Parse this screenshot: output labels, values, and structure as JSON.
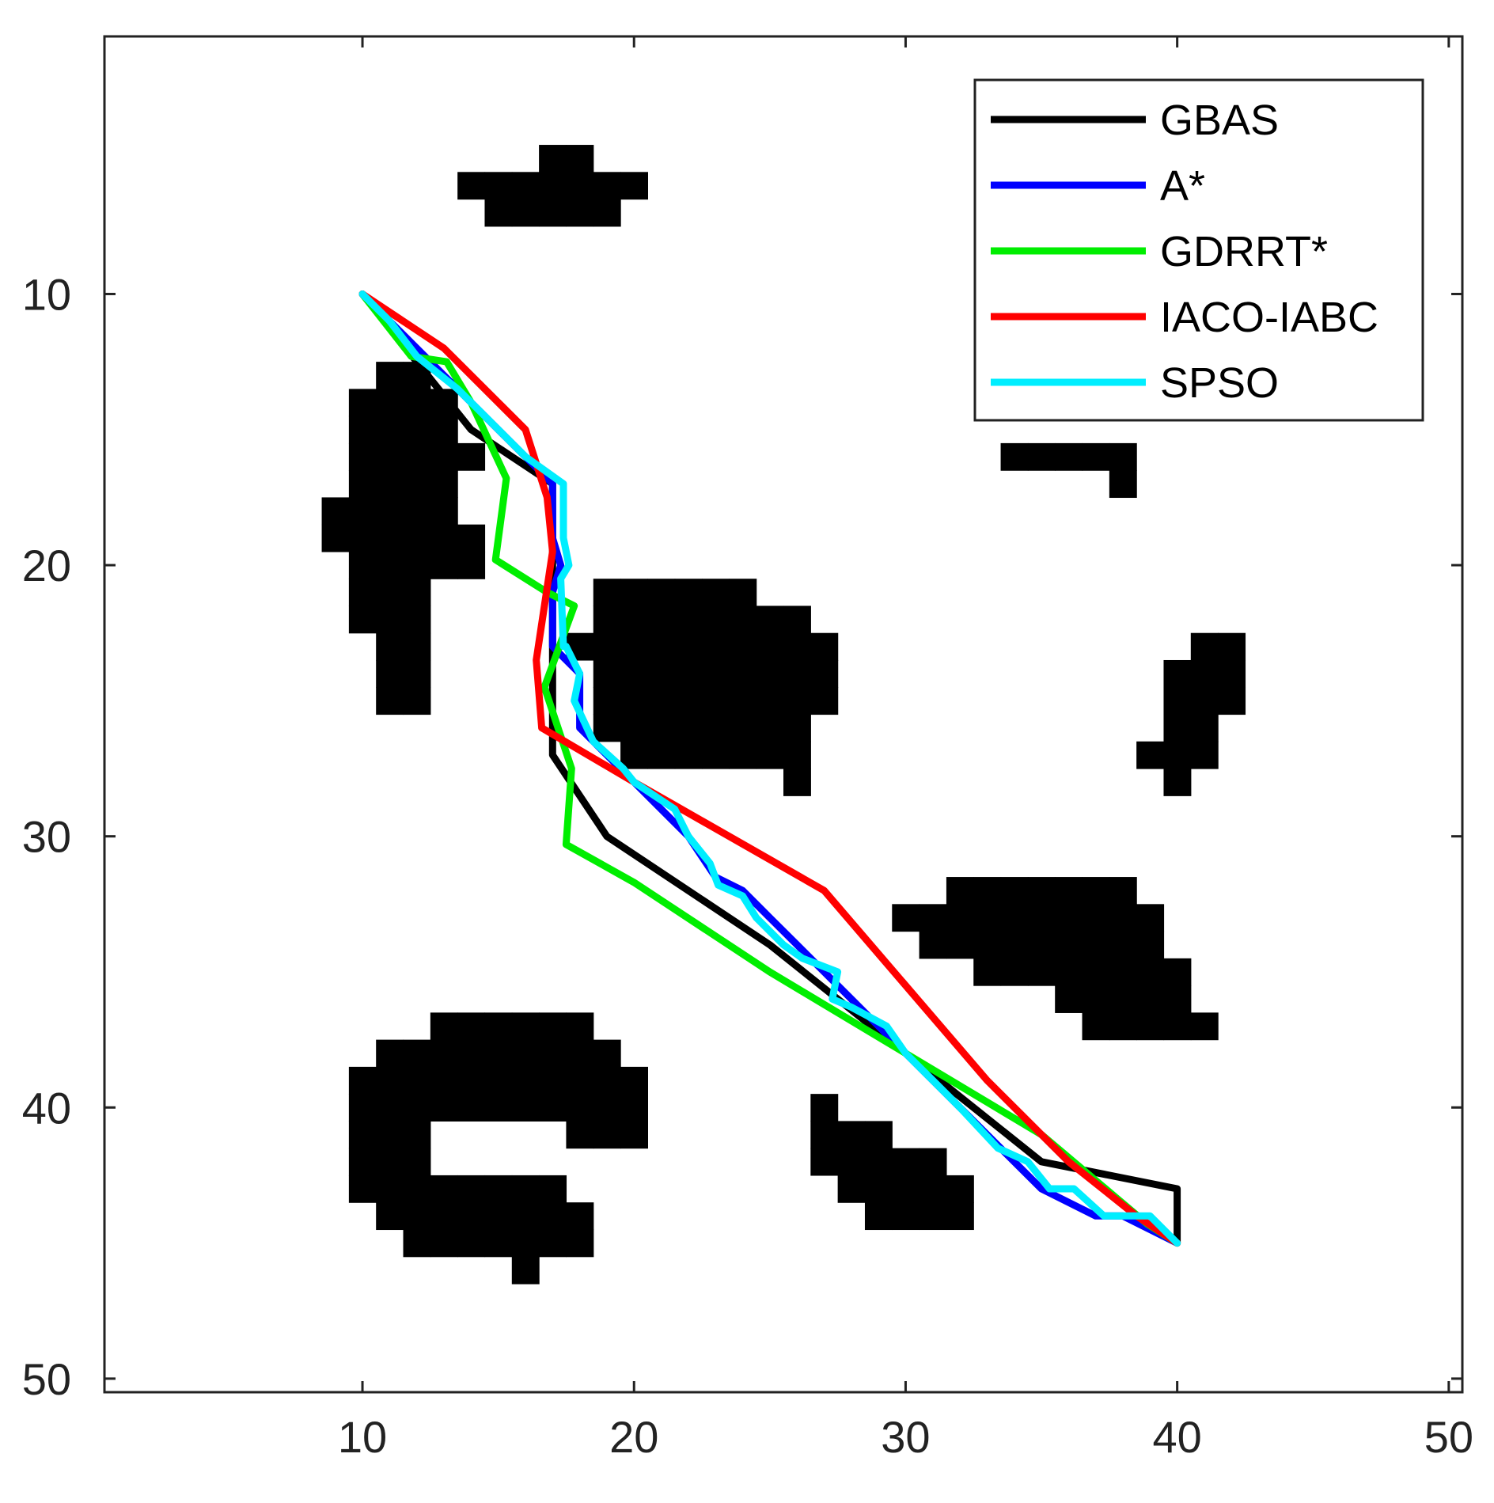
{
  "chart_data": {
    "type": "line",
    "title": "",
    "xlabel": "",
    "ylabel": "",
    "xlim": [
      0.5,
      50.5
    ],
    "ylim": [
      0.5,
      50.5
    ],
    "y_reversed": true,
    "grid": false,
    "legend_position": "top-right",
    "xticks": [
      10,
      20,
      30,
      40,
      50
    ],
    "yticks": [
      10,
      20,
      30,
      40,
      50
    ],
    "obstacle_color": "#000000",
    "obstacle_cells": [
      [
        17,
        5
      ],
      [
        18,
        5
      ],
      [
        14,
        6
      ],
      [
        15,
        6
      ],
      [
        16,
        6
      ],
      [
        17,
        6
      ],
      [
        18,
        6
      ],
      [
        19,
        6
      ],
      [
        20,
        6
      ],
      [
        15,
        7
      ],
      [
        16,
        7
      ],
      [
        17,
        7
      ],
      [
        18,
        7
      ],
      [
        19,
        7
      ],
      [
        11,
        13
      ],
      [
        12,
        13
      ],
      [
        10,
        14
      ],
      [
        11,
        14
      ],
      [
        12,
        14
      ],
      [
        13,
        14
      ],
      [
        10,
        15
      ],
      [
        11,
        15
      ],
      [
        12,
        15
      ],
      [
        13,
        15
      ],
      [
        10,
        16
      ],
      [
        11,
        16
      ],
      [
        12,
        16
      ],
      [
        13,
        16
      ],
      [
        14,
        16
      ],
      [
        10,
        17
      ],
      [
        11,
        17
      ],
      [
        12,
        17
      ],
      [
        13,
        17
      ],
      [
        9,
        18
      ],
      [
        10,
        18
      ],
      [
        11,
        18
      ],
      [
        12,
        18
      ],
      [
        13,
        18
      ],
      [
        9,
        19
      ],
      [
        10,
        19
      ],
      [
        11,
        19
      ],
      [
        12,
        19
      ],
      [
        13,
        19
      ],
      [
        14,
        19
      ],
      [
        10,
        20
      ],
      [
        11,
        20
      ],
      [
        12,
        20
      ],
      [
        13,
        20
      ],
      [
        14,
        20
      ],
      [
        10,
        21
      ],
      [
        11,
        21
      ],
      [
        12,
        21
      ],
      [
        10,
        22
      ],
      [
        11,
        22
      ],
      [
        12,
        22
      ],
      [
        11,
        23
      ],
      [
        12,
        23
      ],
      [
        11,
        24
      ],
      [
        12,
        24
      ],
      [
        11,
        25
      ],
      [
        12,
        25
      ],
      [
        19,
        21
      ],
      [
        20,
        21
      ],
      [
        21,
        21
      ],
      [
        22,
        21
      ],
      [
        23,
        21
      ],
      [
        24,
        21
      ],
      [
        19,
        22
      ],
      [
        20,
        22
      ],
      [
        21,
        22
      ],
      [
        22,
        22
      ],
      [
        23,
        22
      ],
      [
        24,
        22
      ],
      [
        25,
        22
      ],
      [
        26,
        22
      ],
      [
        18,
        23
      ],
      [
        19,
        23
      ],
      [
        20,
        23
      ],
      [
        21,
        23
      ],
      [
        22,
        23
      ],
      [
        23,
        23
      ],
      [
        24,
        23
      ],
      [
        25,
        23
      ],
      [
        26,
        23
      ],
      [
        27,
        23
      ],
      [
        19,
        24
      ],
      [
        20,
        24
      ],
      [
        21,
        24
      ],
      [
        22,
        24
      ],
      [
        23,
        24
      ],
      [
        24,
        24
      ],
      [
        25,
        24
      ],
      [
        26,
        24
      ],
      [
        27,
        24
      ],
      [
        19,
        25
      ],
      [
        20,
        25
      ],
      [
        21,
        25
      ],
      [
        22,
        25
      ],
      [
        23,
        25
      ],
      [
        24,
        25
      ],
      [
        25,
        25
      ],
      [
        26,
        25
      ],
      [
        27,
        25
      ],
      [
        19,
        26
      ],
      [
        20,
        26
      ],
      [
        21,
        26
      ],
      [
        22,
        26
      ],
      [
        23,
        26
      ],
      [
        24,
        26
      ],
      [
        25,
        26
      ],
      [
        26,
        26
      ],
      [
        20,
        27
      ],
      [
        21,
        27
      ],
      [
        22,
        27
      ],
      [
        23,
        27
      ],
      [
        24,
        27
      ],
      [
        25,
        27
      ],
      [
        26,
        27
      ],
      [
        26,
        28
      ],
      [
        34,
        16
      ],
      [
        35,
        16
      ],
      [
        36,
        16
      ],
      [
        37,
        16
      ],
      [
        38,
        16
      ],
      [
        38,
        17
      ],
      [
        41,
        23
      ],
      [
        42,
        23
      ],
      [
        40,
        24
      ],
      [
        41,
        24
      ],
      [
        42,
        24
      ],
      [
        40,
        25
      ],
      [
        41,
        25
      ],
      [
        42,
        25
      ],
      [
        40,
        26
      ],
      [
        41,
        26
      ],
      [
        39,
        27
      ],
      [
        40,
        27
      ],
      [
        41,
        27
      ],
      [
        40,
        28
      ],
      [
        32,
        32
      ],
      [
        33,
        32
      ],
      [
        34,
        32
      ],
      [
        35,
        32
      ],
      [
        36,
        32
      ],
      [
        37,
        32
      ],
      [
        38,
        32
      ],
      [
        30,
        33
      ],
      [
        31,
        33
      ],
      [
        32,
        33
      ],
      [
        33,
        33
      ],
      [
        34,
        33
      ],
      [
        35,
        33
      ],
      [
        36,
        33
      ],
      [
        37,
        33
      ],
      [
        38,
        33
      ],
      [
        39,
        33
      ],
      [
        31,
        34
      ],
      [
        32,
        34
      ],
      [
        33,
        34
      ],
      [
        34,
        34
      ],
      [
        35,
        34
      ],
      [
        36,
        34
      ],
      [
        37,
        34
      ],
      [
        38,
        34
      ],
      [
        39,
        34
      ],
      [
        33,
        35
      ],
      [
        34,
        35
      ],
      [
        35,
        35
      ],
      [
        36,
        35
      ],
      [
        37,
        35
      ],
      [
        38,
        35
      ],
      [
        39,
        35
      ],
      [
        40,
        35
      ],
      [
        36,
        36
      ],
      [
        37,
        36
      ],
      [
        38,
        36
      ],
      [
        39,
        36
      ],
      [
        40,
        36
      ],
      [
        37,
        37
      ],
      [
        38,
        37
      ],
      [
        39,
        37
      ],
      [
        40,
        37
      ],
      [
        41,
        37
      ],
      [
        13,
        37
      ],
      [
        14,
        37
      ],
      [
        15,
        37
      ],
      [
        16,
        37
      ],
      [
        17,
        37
      ],
      [
        18,
        37
      ],
      [
        11,
        38
      ],
      [
        12,
        38
      ],
      [
        13,
        38
      ],
      [
        14,
        38
      ],
      [
        15,
        38
      ],
      [
        16,
        38
      ],
      [
        17,
        38
      ],
      [
        18,
        38
      ],
      [
        19,
        38
      ],
      [
        10,
        39
      ],
      [
        11,
        39
      ],
      [
        12,
        39
      ],
      [
        13,
        39
      ],
      [
        14,
        39
      ],
      [
        15,
        39
      ],
      [
        16,
        39
      ],
      [
        17,
        39
      ],
      [
        18,
        39
      ],
      [
        19,
        39
      ],
      [
        20,
        39
      ],
      [
        10,
        40
      ],
      [
        11,
        40
      ],
      [
        12,
        40
      ],
      [
        13,
        40
      ],
      [
        14,
        40
      ],
      [
        15,
        40
      ],
      [
        16,
        40
      ],
      [
        17,
        40
      ],
      [
        18,
        40
      ],
      [
        19,
        40
      ],
      [
        20,
        40
      ],
      [
        10,
        41
      ],
      [
        11,
        41
      ],
      [
        12,
        41
      ],
      [
        18,
        41
      ],
      [
        19,
        41
      ],
      [
        20,
        41
      ],
      [
        10,
        42
      ],
      [
        11,
        42
      ],
      [
        12,
        42
      ],
      [
        10,
        43
      ],
      [
        11,
        43
      ],
      [
        12,
        43
      ],
      [
        13,
        43
      ],
      [
        14,
        43
      ],
      [
        15,
        43
      ],
      [
        16,
        43
      ],
      [
        17,
        43
      ],
      [
        11,
        44
      ],
      [
        12,
        44
      ],
      [
        13,
        44
      ],
      [
        14,
        44
      ],
      [
        15,
        44
      ],
      [
        16,
        44
      ],
      [
        17,
        44
      ],
      [
        18,
        44
      ],
      [
        12,
        45
      ],
      [
        13,
        45
      ],
      [
        14,
        45
      ],
      [
        15,
        45
      ],
      [
        16,
        45
      ],
      [
        17,
        45
      ],
      [
        18,
        45
      ],
      [
        16,
        46
      ],
      [
        27,
        40
      ],
      [
        27,
        41
      ],
      [
        28,
        41
      ],
      [
        29,
        41
      ],
      [
        27,
        42
      ],
      [
        28,
        42
      ],
      [
        29,
        42
      ],
      [
        30,
        42
      ],
      [
        31,
        42
      ],
      [
        28,
        43
      ],
      [
        29,
        43
      ],
      [
        30,
        43
      ],
      [
        31,
        43
      ],
      [
        32,
        43
      ],
      [
        29,
        44
      ],
      [
        30,
        44
      ],
      [
        31,
        44
      ],
      [
        32,
        44
      ]
    ],
    "series": [
      {
        "name": "GBAS",
        "color": "#000000",
        "points": [
          [
            10,
            10
          ],
          [
            14,
            15
          ],
          [
            17,
            17
          ],
          [
            17,
            27
          ],
          [
            19,
            30
          ],
          [
            25,
            34
          ],
          [
            35,
            42
          ],
          [
            40,
            43
          ],
          [
            40,
            45
          ]
        ]
      },
      {
        "name": "A*",
        "color": "#0000ff",
        "points": [
          [
            10,
            10
          ],
          [
            13,
            13
          ],
          [
            17,
            17
          ],
          [
            17,
            19
          ],
          [
            17.3,
            20
          ],
          [
            17,
            21
          ],
          [
            17,
            23
          ],
          [
            18,
            24
          ],
          [
            18,
            26
          ],
          [
            20,
            28
          ],
          [
            22,
            30
          ],
          [
            23,
            31.5
          ],
          [
            24,
            32
          ],
          [
            25,
            33
          ],
          [
            26,
            34
          ],
          [
            28,
            36
          ],
          [
            29,
            37
          ],
          [
            30,
            38
          ],
          [
            32,
            40
          ],
          [
            34,
            42
          ],
          [
            35,
            43
          ],
          [
            37,
            44
          ],
          [
            38,
            44
          ],
          [
            40,
            45
          ]
        ]
      },
      {
        "name": "GDRRT*",
        "color": "#00ee00",
        "points": [
          [
            10,
            10
          ],
          [
            11.8,
            12.3
          ],
          [
            13.1,
            12.5
          ],
          [
            14,
            14
          ],
          [
            15.3,
            16.8
          ],
          [
            14.9,
            19.8
          ],
          [
            16.8,
            21
          ],
          [
            17.8,
            21.5
          ],
          [
            16.7,
            24.5
          ],
          [
            17.7,
            27.5
          ],
          [
            17.5,
            30.3
          ],
          [
            20,
            31.7
          ],
          [
            25,
            35
          ],
          [
            30,
            38
          ],
          [
            35,
            41
          ],
          [
            38.9,
            44.3
          ],
          [
            40,
            45
          ]
        ]
      },
      {
        "name": "IACO-IABC",
        "color": "#ff0000",
        "points": [
          [
            10,
            10
          ],
          [
            13,
            12
          ],
          [
            16,
            15
          ],
          [
            16.8,
            17.5
          ],
          [
            17,
            19.5
          ],
          [
            16.4,
            23.5
          ],
          [
            16.6,
            26
          ],
          [
            20,
            28
          ],
          [
            27,
            32
          ],
          [
            30,
            35.5
          ],
          [
            33,
            39
          ],
          [
            36,
            42
          ],
          [
            38.5,
            44
          ],
          [
            40,
            45
          ]
        ]
      },
      {
        "name": "SPSO",
        "color": "#00eeff",
        "points": [
          [
            10,
            10
          ],
          [
            11,
            11
          ],
          [
            12,
            12.3
          ],
          [
            13.5,
            13.5
          ],
          [
            14.5,
            14.5
          ],
          [
            16,
            16
          ],
          [
            17.4,
            17
          ],
          [
            17.4,
            19
          ],
          [
            17.6,
            20
          ],
          [
            17.3,
            20.5
          ],
          [
            17.4,
            23
          ],
          [
            17.5,
            23
          ],
          [
            18,
            24
          ],
          [
            17.8,
            25
          ],
          [
            18.5,
            26.5
          ],
          [
            19.6,
            27.5
          ],
          [
            20,
            28
          ],
          [
            21.5,
            29
          ],
          [
            22,
            30
          ],
          [
            22.8,
            31
          ],
          [
            23.1,
            31.8
          ],
          [
            24,
            32.2
          ],
          [
            24.5,
            33
          ],
          [
            25.5,
            34
          ],
          [
            26.2,
            34.5
          ],
          [
            27.5,
            35
          ],
          [
            27.3,
            36
          ],
          [
            28,
            36.3
          ],
          [
            29.3,
            37
          ],
          [
            30,
            38
          ],
          [
            31,
            39
          ],
          [
            32,
            40
          ],
          [
            33.4,
            41.5
          ],
          [
            34.5,
            42
          ],
          [
            35.3,
            43
          ],
          [
            36.2,
            43
          ],
          [
            37.3,
            44
          ],
          [
            38,
            44
          ],
          [
            39,
            44
          ],
          [
            40,
            45
          ]
        ]
      }
    ]
  }
}
